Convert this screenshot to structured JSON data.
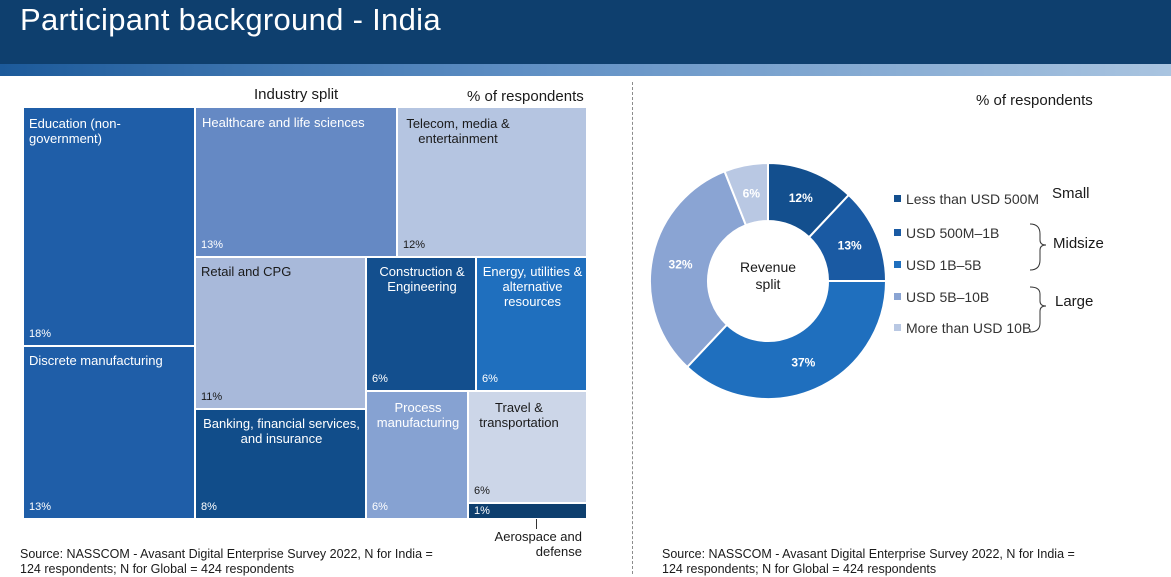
{
  "header": {
    "title": "Participant background - India"
  },
  "left": {
    "title": "Industry split",
    "units": "% of respondents",
    "annotation": "Aerospace and\ndefense",
    "source": "Source: NASSCOM - Avasant Digital Enterprise Survey 2022, N for India =\n124 respondents; N for Global = 424 respondents"
  },
  "right": {
    "units": "% of respondents",
    "center_label": "Revenue\nsplit",
    "groups": [
      "Small",
      "Midsize",
      "Large"
    ],
    "source": "Source: NASSCOM - Avasant Digital Enterprise Survey 2022, N for India =\n124 respondents; N for Global = 424 respondents"
  },
  "chart_data": [
    {
      "type": "treemap",
      "title": "Industry split",
      "items": [
        {
          "name": "Education (non-\ngovernment)",
          "label": "18%",
          "value": 18,
          "color": "#1f5ea8"
        },
        {
          "name": "Discrete manufacturing",
          "label": "13%",
          "value": 13,
          "color": "#1f5ea8"
        },
        {
          "name": "Healthcare and life sciences",
          "label": "13%",
          "value": 13,
          "color": "#6589c4"
        },
        {
          "name": "Telecom, media &\nentertainment",
          "label": "12%",
          "value": 12,
          "color": "#b5c5e1"
        },
        {
          "name": "Retail and CPG",
          "label": "11%",
          "value": 11,
          "color": "#a8b9da"
        },
        {
          "name": "Banking, financial services,\nand insurance",
          "label": "8%",
          "value": 8,
          "color": "#114d8a"
        },
        {
          "name": "Construction &\nEngineering",
          "label": "6%",
          "value": 6,
          "color": "#134f8e"
        },
        {
          "name": "Energy, utilities &\nalternative\nresources",
          "label": "6%",
          "value": 6,
          "color": "#1f6fbe"
        },
        {
          "name": "Process\nmanufacturing",
          "label": "6%",
          "value": 6,
          "color": "#86a2d2"
        },
        {
          "name": "Travel &\ntransportation",
          "label": "6%",
          "value": 6,
          "color": "#ccd6e8"
        },
        {
          "name": "",
          "label": "1%",
          "value": 1,
          "color": "#0e3f6e"
        }
      ]
    },
    {
      "type": "pie",
      "title": "",
      "slices": [
        {
          "label": "Less than USD 500M",
          "value": 12,
          "text": "12%",
          "color": "#134f8e"
        },
        {
          "label": "USD 500M–1B",
          "value": 13,
          "text": "13%",
          "color": "#1a5aa3"
        },
        {
          "label": "USD 1B–5B",
          "value": 37,
          "text": "37%",
          "color": "#1f6fbe"
        },
        {
          "label": "USD 5B–10B",
          "value": 32,
          "text": "32%",
          "color": "#8aa4d3"
        },
        {
          "label": "More than USD 10B",
          "value": 6,
          "text": "6%",
          "color": "#b9c8e3"
        }
      ]
    }
  ]
}
